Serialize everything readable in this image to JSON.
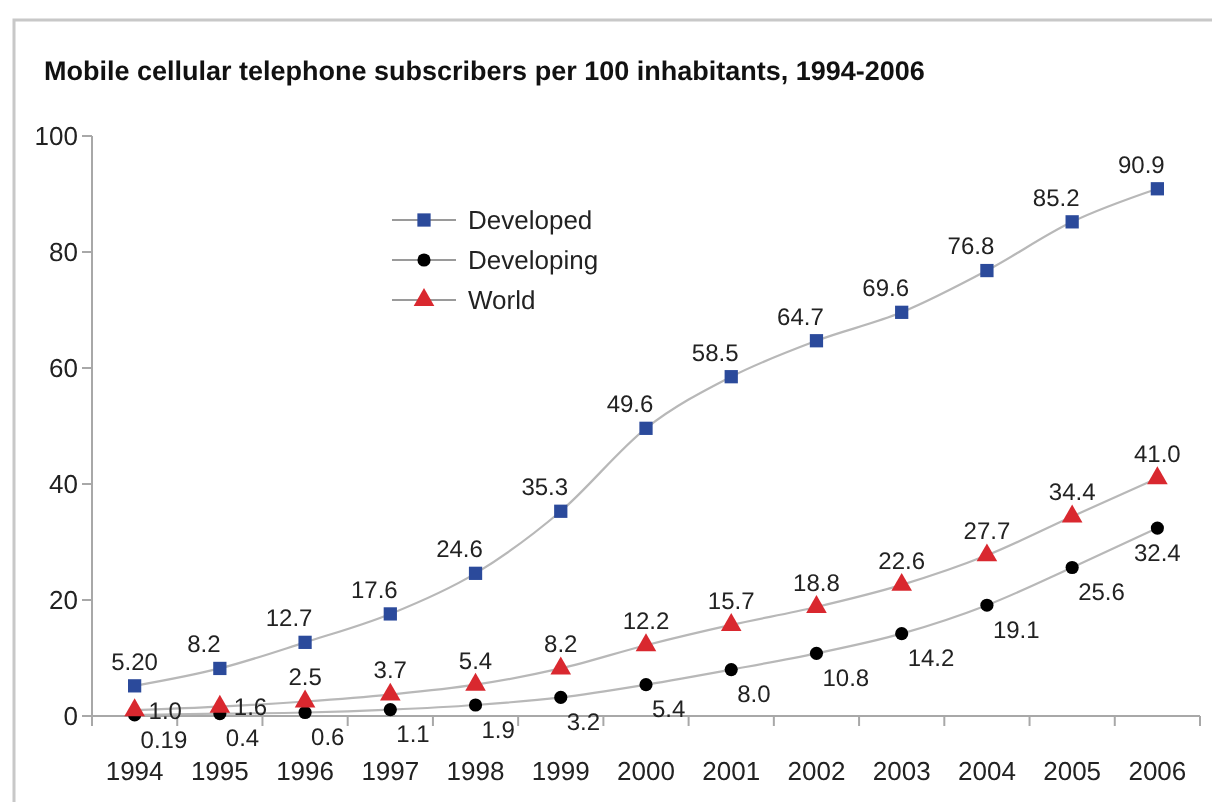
{
  "chart_data": {
    "type": "line",
    "title": "Mobile cellular telephone subscribers per 100 inhabitants, 1994-2006",
    "categories": [
      "1994",
      "1995",
      "1996",
      "1997",
      "1998",
      "1999",
      "2000",
      "2001",
      "2002",
      "2003",
      "2004",
      "2005",
      "2006"
    ],
    "series": [
      {
        "name": "Developed",
        "color": "#2b4a9b",
        "marker": "square",
        "values": [
          5.2,
          8.2,
          12.7,
          17.6,
          24.6,
          35.3,
          49.6,
          58.5,
          64.7,
          69.6,
          76.8,
          85.2,
          90.9
        ],
        "value_labels": [
          "5.20",
          "8.2",
          "12.7",
          "17.6",
          "24.6",
          "35.3",
          "49.6",
          "58.5",
          "64.7",
          "69.6",
          "76.8",
          "85.2",
          "90.9"
        ]
      },
      {
        "name": "Developing",
        "color": "#000000",
        "marker": "circle",
        "values": [
          0.19,
          0.4,
          0.6,
          1.1,
          1.9,
          3.2,
          5.4,
          8.0,
          10.8,
          14.2,
          19.1,
          25.6,
          32.4
        ],
        "value_labels": [
          "0.19",
          "0.4",
          "0.6",
          "1.1",
          "1.9",
          "3.2",
          "5.4",
          "8.0",
          "10.8",
          "14.2",
          "19.1",
          "25.6",
          "32.4"
        ]
      },
      {
        "name": "World",
        "color": "#d9282f",
        "marker": "triangle",
        "values": [
          1.0,
          1.6,
          2.5,
          3.7,
          5.4,
          8.2,
          12.2,
          15.7,
          18.8,
          22.6,
          27.7,
          34.4,
          41.0
        ],
        "value_labels": [
          "1.0",
          "1.6",
          "2.5",
          "3.7",
          "5.4",
          "8.2",
          "12.2",
          "15.7",
          "18.8",
          "22.6",
          "27.7",
          "34.4",
          "41.0"
        ]
      }
    ],
    "ylim": [
      0,
      100
    ],
    "yticks": [
      0,
      20,
      40,
      60,
      80,
      100
    ],
    "grid": false,
    "legend": "top left",
    "line_style": "solid"
  }
}
